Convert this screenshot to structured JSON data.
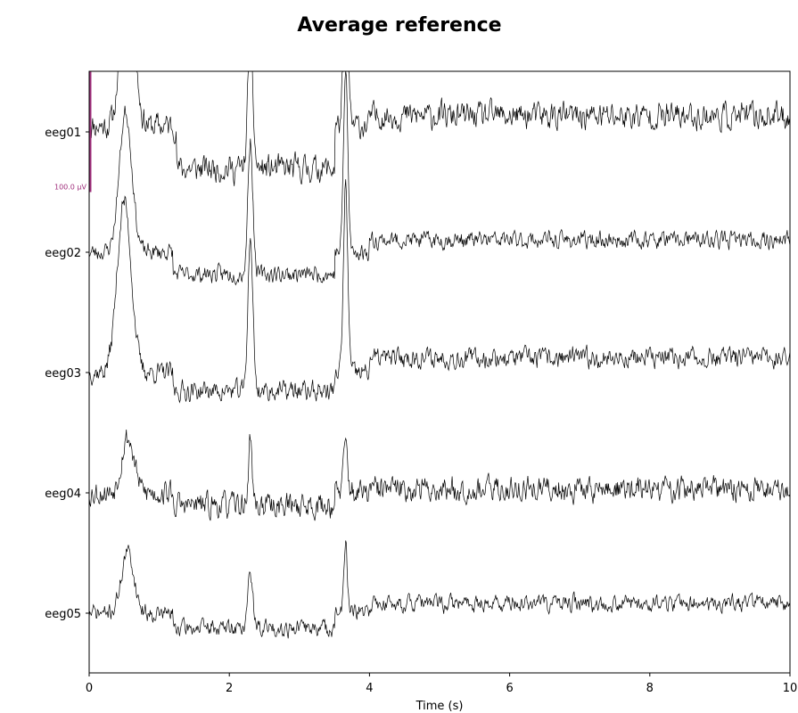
{
  "chart_data": {
    "type": "line",
    "title": "Average reference",
    "xlabel": "Time (s)",
    "ylabel": "",
    "xlim": [
      0,
      10
    ],
    "x_ticks": [
      "0",
      "2",
      "4",
      "6",
      "8",
      "10"
    ],
    "x_tick_values": [
      0,
      2,
      4,
      6,
      8,
      10
    ],
    "channels": [
      "eeg01",
      "eeg02",
      "eeg03",
      "eeg04",
      "eeg05"
    ],
    "scale_bar": {
      "label": "100.0 µV",
      "value_uv": 100,
      "color": "#a02f7c"
    },
    "trace_color": "#000000",
    "series": [
      {
        "name": "eeg01",
        "baseline_uv": 5,
        "events": [
          [
            0.55,
            140,
            0.09
          ],
          [
            2.3,
            110,
            0.035
          ],
          [
            3.66,
            160,
            0.03
          ]
        ],
        "segments": [
          [
            0,
            1.1,
            0
          ],
          [
            1.25,
            3.5,
            -35
          ],
          [
            4.0,
            10,
            8
          ]
        ],
        "noise_uv": 16,
        "seed": 11
      },
      {
        "name": "eeg02",
        "baseline_uv": 0,
        "events": [
          [
            0.52,
            115,
            0.09
          ],
          [
            2.3,
            110,
            0.035
          ],
          [
            3.66,
            150,
            0.03
          ]
        ],
        "segments": [
          [
            0,
            1.0,
            0
          ],
          [
            1.2,
            3.5,
            -18
          ],
          [
            4.0,
            10,
            10
          ]
        ],
        "noise_uv": 10,
        "seed": 23
      },
      {
        "name": "eeg03",
        "baseline_uv": 0,
        "events": [
          [
            0.5,
            140,
            0.1
          ],
          [
            2.3,
            125,
            0.035
          ],
          [
            3.66,
            155,
            0.03
          ]
        ],
        "segments": [
          [
            0,
            1.0,
            0
          ],
          [
            1.2,
            3.5,
            -15
          ],
          [
            4.0,
            10,
            12
          ]
        ],
        "noise_uv": 12,
        "seed": 37
      },
      {
        "name": "eeg04",
        "baseline_uv": 0,
        "events": [
          [
            0.55,
            45,
            0.09
          ],
          [
            2.3,
            55,
            0.025
          ],
          [
            3.66,
            40,
            0.03
          ]
        ],
        "segments": [
          [
            0,
            1.1,
            0
          ],
          [
            1.2,
            3.5,
            -10
          ],
          [
            4.0,
            10,
            3
          ]
        ],
        "noise_uv": 15,
        "seed": 53
      },
      {
        "name": "eeg05",
        "baseline_uv": 0,
        "events": [
          [
            0.55,
            50,
            0.09
          ],
          [
            2.3,
            45,
            0.035
          ],
          [
            3.66,
            55,
            0.025
          ]
        ],
        "segments": [
          [
            0,
            1.0,
            0
          ],
          [
            1.2,
            3.5,
            -12
          ],
          [
            4.0,
            10,
            8
          ]
        ],
        "noise_uv": 10,
        "seed": 71
      }
    ]
  }
}
